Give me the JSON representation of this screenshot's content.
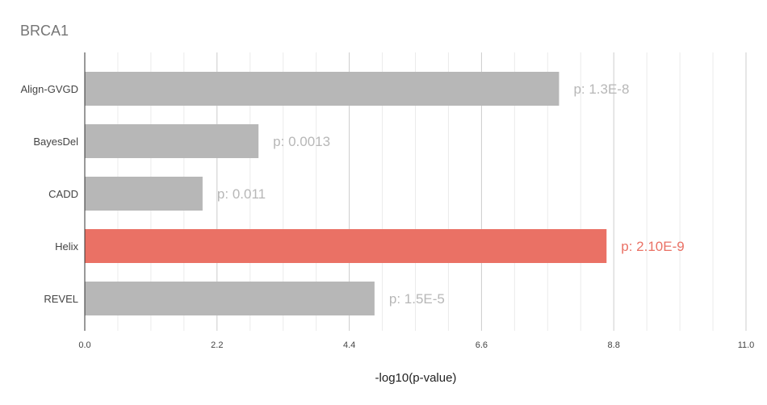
{
  "chart_data": {
    "type": "bar",
    "orientation": "horizontal",
    "title": "BRCA1",
    "xlabel": "-log10(p-value)",
    "ylabel": "",
    "xlim": [
      0,
      11
    ],
    "x_ticks": [
      "0.0",
      "2.2",
      "4.4",
      "6.6",
      "8.8",
      "11.0"
    ],
    "categories": [
      "Align-GVGD",
      "BayesDel",
      "CADD",
      "Helix",
      "REVEL"
    ],
    "values": [
      7.89,
      2.89,
      1.96,
      8.68,
      4.82
    ],
    "data_labels": [
      "p: 1.3E-8",
      "p: 0.0013",
      "p: 0.011",
      "p: 2.10E-9",
      "p: 1.5E-5"
    ],
    "bar_colors": [
      "#b7b7b7",
      "#b7b7b7",
      "#b7b7b7",
      "#ea7165",
      "#b7b7b7"
    ],
    "label_colors": [
      "#b7b7b7",
      "#b7b7b7",
      "#b7b7b7",
      "#ea7165",
      "#b7b7b7"
    ],
    "grid": true,
    "legend": "none"
  }
}
